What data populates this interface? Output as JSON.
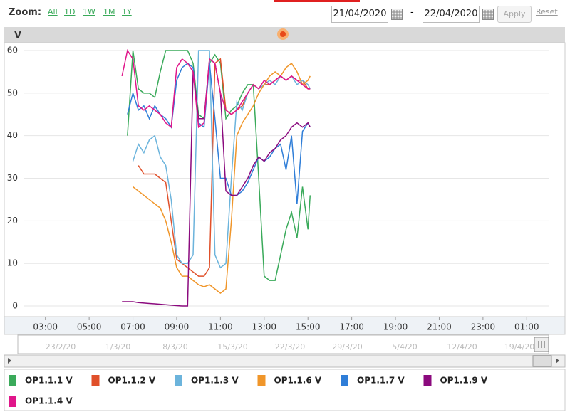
{
  "toolbar": {
    "zoom_label": "Zoom:",
    "zoom_options": [
      "All",
      "1D",
      "1W",
      "1M",
      "1Y"
    ],
    "date_from": "21/04/2020",
    "date_separator": "-",
    "date_to": "22/04/2020",
    "apply": "Apply",
    "reset": "Reset"
  },
  "chart_data": {
    "type": "line",
    "y_label": "V",
    "x": [
      6.5,
      6.75,
      7,
      7.25,
      7.5,
      7.75,
      8,
      8.25,
      8.5,
      8.75,
      9,
      9.25,
      9.5,
      9.75,
      10,
      10.25,
      10.5,
      10.75,
      11,
      11.25,
      11.5,
      11.75,
      12,
      12.25,
      12.5,
      12.75,
      13,
      13.25,
      13.5,
      13.75,
      14,
      14.25,
      14.5,
      14.75,
      15,
      15.1
    ],
    "xlim": [
      2,
      26
    ],
    "xticks": [
      {
        "value": 3,
        "label": "03:00"
      },
      {
        "value": 5,
        "label": "05:00"
      },
      {
        "value": 7,
        "label": "07:00"
      },
      {
        "value": 9,
        "label": "09:00"
      },
      {
        "value": 11,
        "label": "11:00"
      },
      {
        "value": 13,
        "label": "13:00"
      },
      {
        "value": 15,
        "label": "15:00"
      },
      {
        "value": 17,
        "label": "17:00"
      },
      {
        "value": 19,
        "label": "19:00"
      },
      {
        "value": 21,
        "label": "21:00"
      },
      {
        "value": 23,
        "label": "23:00"
      },
      {
        "value": 25,
        "label": "01:00"
      }
    ],
    "ylim": [
      -2.5,
      61.5
    ],
    "yticks": [
      0,
      10,
      20,
      30,
      40,
      50,
      60
    ],
    "grid": true,
    "series": [
      {
        "name": "OP1.1.1 V",
        "color": "#3aaa5a",
        "values": [
          null,
          40,
          60,
          51,
          50,
          50,
          49,
          55,
          60,
          60,
          60,
          60,
          60,
          57,
          45,
          44,
          57,
          59,
          57,
          44,
          46,
          47,
          50,
          52,
          52,
          30,
          7,
          6,
          6,
          12,
          18,
          22,
          16,
          28,
          18,
          26
        ]
      },
      {
        "name": "OP1.1.2 V",
        "color": "#e0502a",
        "values": [
          null,
          null,
          null,
          33,
          31,
          31,
          31,
          30,
          29,
          20,
          11,
          10,
          9,
          8,
          7,
          7,
          9,
          57,
          58,
          46,
          45,
          46,
          47,
          50,
          52,
          51,
          52,
          52,
          53,
          54,
          53,
          54,
          53,
          53,
          51,
          51
        ]
      },
      {
        "name": "OP1.1.3 V",
        "color": "#6cb4dc",
        "values": [
          null,
          null,
          34,
          38,
          36,
          39,
          40,
          35,
          33,
          25,
          12,
          10,
          10,
          12,
          60,
          60,
          60,
          12,
          9,
          10,
          30,
          48,
          46,
          50,
          52,
          51,
          52,
          53,
          52,
          54,
          53,
          54,
          52,
          53,
          52,
          51
        ]
      },
      {
        "name": "OP1.1.6 V",
        "color": "#f0962a",
        "values": [
          null,
          null,
          28,
          27,
          26,
          25,
          24,
          23,
          20,
          15,
          9,
          7,
          7,
          6,
          5,
          4.5,
          5,
          4,
          3,
          4,
          20,
          40,
          43,
          45,
          47,
          50,
          52,
          54,
          55,
          54,
          56,
          57,
          55,
          52,
          53,
          54
        ]
      },
      {
        "name": "OP1.1.7 V",
        "color": "#2f7ed8",
        "values": [
          null,
          45,
          50,
          46,
          47,
          44,
          47,
          45,
          44,
          42,
          53,
          56,
          57,
          56,
          43,
          42,
          57,
          44,
          30,
          30,
          26,
          26,
          27,
          29,
          32,
          35,
          34,
          35,
          37,
          38,
          32,
          40,
          24,
          41,
          43,
          42
        ]
      },
      {
        "name": "OP1.1.9 V",
        "color": "#8b0a7e",
        "values": [
          1,
          1,
          1,
          0.8,
          0.7,
          0.6,
          0.5,
          0.4,
          0.3,
          0.2,
          0.1,
          0,
          0,
          55,
          44,
          44,
          58,
          57,
          50,
          27,
          26,
          26,
          28,
          30,
          33,
          35,
          34,
          36,
          37,
          39,
          40,
          42,
          43,
          42,
          43,
          42
        ]
      },
      {
        "name": "OP1.1.4 V",
        "color": "#e0168a",
        "values": [
          54,
          60,
          58,
          47,
          46,
          47,
          46,
          45,
          43,
          42,
          56,
          58,
          57,
          55,
          42,
          43,
          58,
          57,
          50,
          46,
          45,
          46,
          48,
          50,
          52,
          51,
          53,
          52,
          53,
          54,
          53,
          54,
          53,
          52,
          51,
          51
        ]
      }
    ],
    "navigator_labels": [
      "23/2/20",
      "1/3/20",
      "8/3/20",
      "15/3/20",
      "22/3/20",
      "29/3/20",
      "5/4/20",
      "12/4/20",
      "19/4/20"
    ]
  }
}
